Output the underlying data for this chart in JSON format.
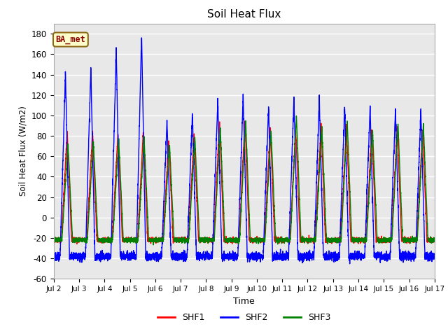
{
  "title": "Soil Heat Flux",
  "xlabel": "Time",
  "ylabel": "Soil Heat Flux (W/m2)",
  "ylim": [
    -60,
    190
  ],
  "yticks": [
    -60,
    -40,
    -20,
    0,
    20,
    40,
    60,
    80,
    100,
    120,
    140,
    160,
    180
  ],
  "colors": {
    "SHF1": "red",
    "SHF2": "blue",
    "SHF3": "green"
  },
  "legend_label": "BA_met",
  "figure_facecolor": "#ffffff",
  "plot_bg_color": "#e8e8e8",
  "line_width": 1.0,
  "shf1_peaks": [
    85,
    85,
    83,
    85,
    75,
    82,
    93,
    95,
    88,
    87,
    92,
    90,
    86,
    88,
    87
  ],
  "shf2_peaks": [
    142,
    147,
    165,
    180,
    95,
    103,
    115,
    120,
    108,
    117,
    116,
    109,
    109,
    106,
    104
  ],
  "shf3_peaks": [
    73,
    75,
    76,
    78,
    72,
    78,
    88,
    95,
    85,
    100,
    90,
    95,
    85,
    93,
    92
  ],
  "shf1_trough": -22,
  "shf2_trough": -38,
  "shf3_trough": -22,
  "shf1_rs": 0.3,
  "shf1_re": 0.53,
  "shf1_fe": 0.7,
  "shf2_rs": 0.25,
  "shf2_re": 0.46,
  "shf2_fe": 0.62,
  "shf3_rs": 0.32,
  "shf3_re": 0.56,
  "shf3_fe": 0.74
}
